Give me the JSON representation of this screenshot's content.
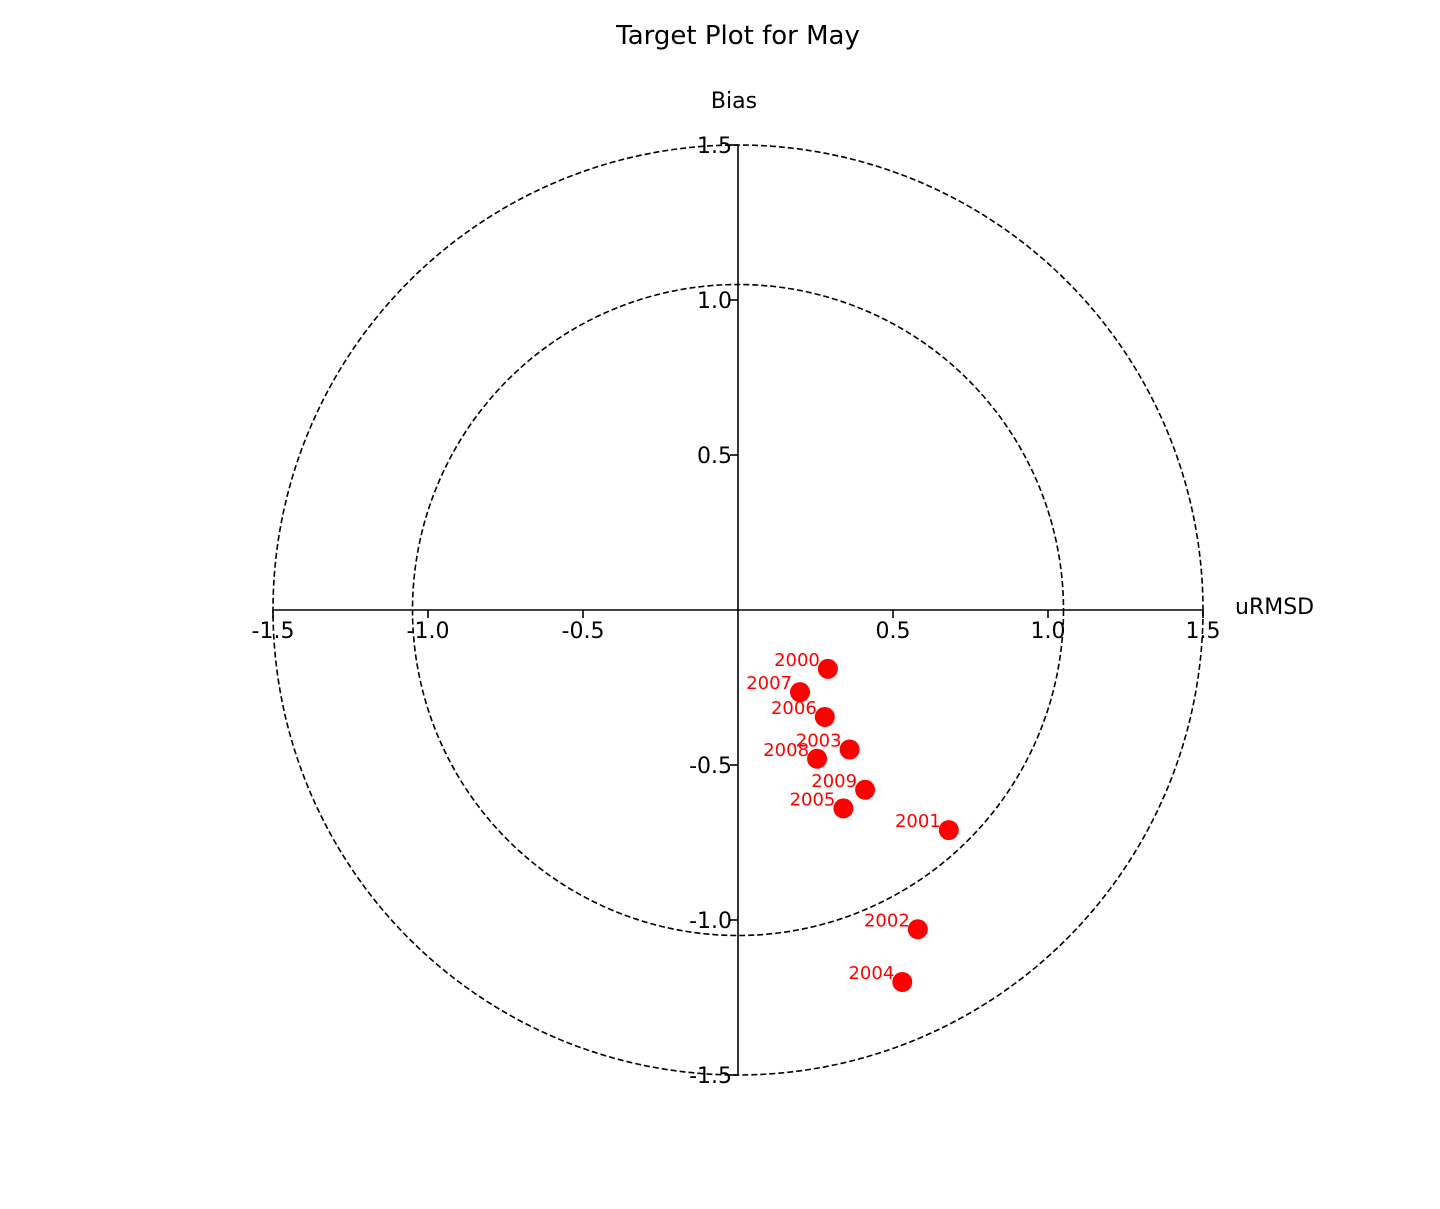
{
  "chart_data": {
    "type": "scatter",
    "title": "Target Plot for May",
    "xlabel": "uRMSD",
    "ylabel": "Bias",
    "xlim": [
      -1.5,
      1.5
    ],
    "ylim": [
      -1.5,
      1.5
    ],
    "x_ticks": [
      "-1.5",
      "-1.0",
      "-0.5",
      "0.5",
      "1.0",
      "1.5"
    ],
    "y_ticks": [
      "1.5",
      "1.0",
      "0.5",
      "-0.5",
      "-1.0",
      "-1.5"
    ],
    "circles": [
      1.05,
      1.5
    ],
    "grid": false,
    "marker_color": "#ff0000",
    "points": [
      {
        "label": "2000",
        "x": 0.29,
        "y": -0.19
      },
      {
        "label": "2001",
        "x": 0.68,
        "y": -0.71
      },
      {
        "label": "2002",
        "x": 0.58,
        "y": -1.03
      },
      {
        "label": "2003",
        "x": 0.36,
        "y": -0.45
      },
      {
        "label": "2004",
        "x": 0.53,
        "y": -1.2
      },
      {
        "label": "2005",
        "x": 0.34,
        "y": -0.64
      },
      {
        "label": "2006",
        "x": 0.28,
        "y": -0.345
      },
      {
        "label": "2007",
        "x": 0.2,
        "y": -0.265
      },
      {
        "label": "2008",
        "x": 0.255,
        "y": -0.48
      },
      {
        "label": "2009",
        "x": 0.41,
        "y": -0.58
      }
    ]
  }
}
